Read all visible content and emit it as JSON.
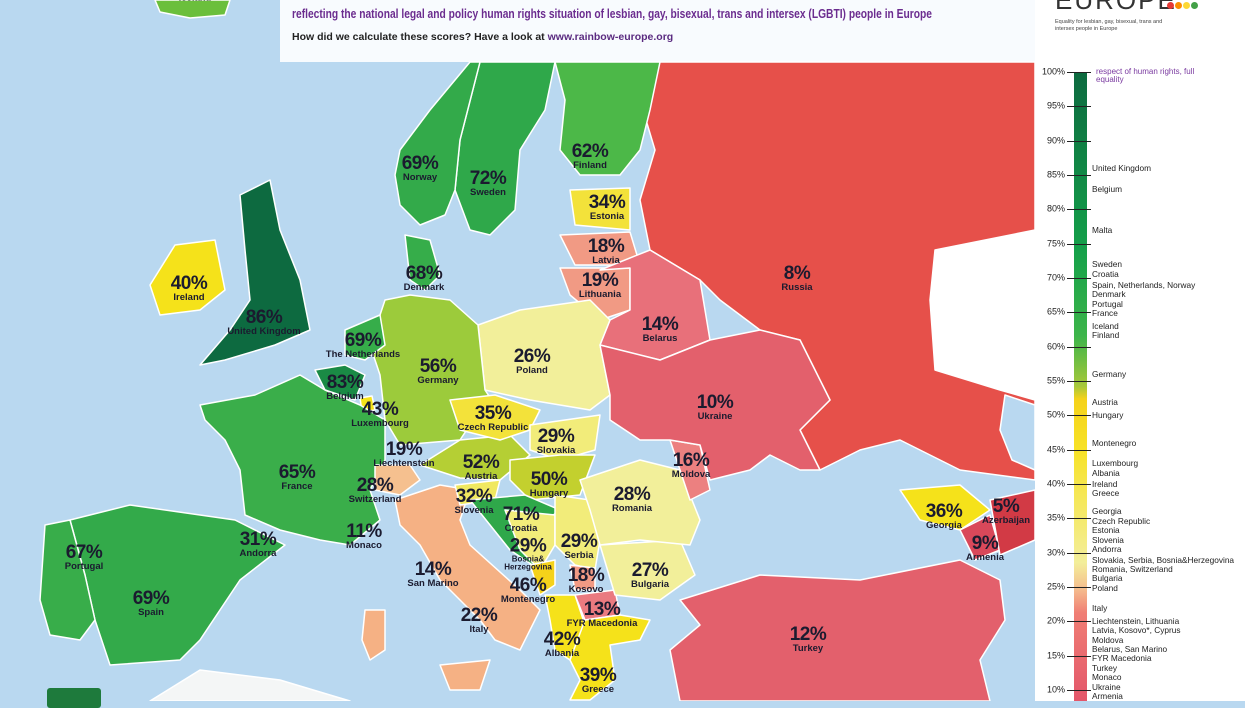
{
  "header": {
    "line1": "reflecting the national legal and policy human rights situation of lesbian, gay, bisexual, trans and intersex (LGBTI) people in Europe",
    "line2_prefix": "How did we calculate these scores? Have a look at ",
    "line2_link": "www.rainbow-europe.org"
  },
  "logo": {
    "word": "EUROPE",
    "subtitle": "Equality for lesbian, gay, bisexual, trans and intersex people in Europe"
  },
  "colors": {
    "sea": "#b9d8f0",
    "top": "#0d6a40",
    "green": "#2fb04a",
    "light_green": "#9ccb3b",
    "yellow": "#f5e21a",
    "pale_yellow": "#f2ef9a",
    "orange": "#f5b184",
    "salmon": "#f08a7a",
    "red": "#e6504a"
  },
  "countries": [
    {
      "name": "Iceland",
      "pct": ""
    },
    {
      "name": "Norway",
      "pct": "69%"
    },
    {
      "name": "Sweden",
      "pct": "72%"
    },
    {
      "name": "Finland",
      "pct": "62%"
    },
    {
      "name": "Estonia",
      "pct": "34%"
    },
    {
      "name": "Latvia",
      "pct": "18%"
    },
    {
      "name": "Lithuania",
      "pct": "19%"
    },
    {
      "name": "Belarus",
      "pct": "14%"
    },
    {
      "name": "Russia",
      "pct": "8%"
    },
    {
      "name": "Ukraine",
      "pct": "10%"
    },
    {
      "name": "Moldova",
      "pct": "16%"
    },
    {
      "name": "Ireland",
      "pct": "40%"
    },
    {
      "name": "United Kingdom",
      "pct": "86%"
    },
    {
      "name": "Denmark",
      "pct": "68%"
    },
    {
      "name": "The Netherlands",
      "pct": "69%"
    },
    {
      "name": "Germany",
      "pct": "56%"
    },
    {
      "name": "Poland",
      "pct": "26%"
    },
    {
      "name": "Belgium",
      "pct": "83%"
    },
    {
      "name": "Luxembourg",
      "pct": "43%"
    },
    {
      "name": "Czech Republic",
      "pct": "35%"
    },
    {
      "name": "Slovakia",
      "pct": "29%"
    },
    {
      "name": "Liechtenstein",
      "pct": "19%"
    },
    {
      "name": "Austria",
      "pct": "52%"
    },
    {
      "name": "Hungary",
      "pct": "50%"
    },
    {
      "name": "Switzerland",
      "pct": "28%"
    },
    {
      "name": "France",
      "pct": "65%"
    },
    {
      "name": "Slovenia",
      "pct": "32%"
    },
    {
      "name": "Croatia",
      "pct": "71%"
    },
    {
      "name": "Romania",
      "pct": "28%"
    },
    {
      "name": "Monaco",
      "pct": "11%"
    },
    {
      "name": "Andorra",
      "pct": "31%"
    },
    {
      "name": "Portugal",
      "pct": "67%"
    },
    {
      "name": "Bosnia& Herzegovina",
      "pct": "29%"
    },
    {
      "name": "Serbia",
      "pct": "29%"
    },
    {
      "name": "San Marino",
      "pct": "14%"
    },
    {
      "name": "Spain",
      "pct": "69%"
    },
    {
      "name": "Kosovo",
      "pct": "18%"
    },
    {
      "name": "Montenegro",
      "pct": "46%"
    },
    {
      "name": "Bulgaria",
      "pct": "27%"
    },
    {
      "name": "FYR Macedonia",
      "pct": "13%"
    },
    {
      "name": "Italy",
      "pct": "22%"
    },
    {
      "name": "Albania",
      "pct": "42%"
    },
    {
      "name": "Greece",
      "pct": "39%"
    },
    {
      "name": "Turkey",
      "pct": "12%"
    },
    {
      "name": "Georgia",
      "pct": "36%"
    },
    {
      "name": "Azerbaijan",
      "pct": "5%"
    },
    {
      "name": "Armenia",
      "pct": "9%"
    }
  ],
  "legend": {
    "note": "respect of human rights, full equality",
    "ticks": [
      "100%",
      "95%",
      "90%",
      "85%",
      "80%",
      "75%",
      "70%",
      "65%",
      "60%",
      "55%",
      "50%",
      "45%",
      "40%",
      "35%",
      "30%",
      "25%",
      "20%",
      "15%",
      "10%"
    ],
    "entries": [
      {
        "label": "United Kingdom",
        "score": 86
      },
      {
        "label": "Belgium",
        "score": 83
      },
      {
        "label": "Malta",
        "score": 77
      },
      {
        "label": "Sweden",
        "score": 72
      },
      {
        "label": "Croatia",
        "score": 71
      },
      {
        "label": "Spain, Netherlands, Norway",
        "score": 69
      },
      {
        "label": "Denmark",
        "score": 68
      },
      {
        "label": "Portugal",
        "score": 67
      },
      {
        "label": "France",
        "score": 65
      },
      {
        "label": "Iceland",
        "score": 63
      },
      {
        "label": "Finland",
        "score": 62
      },
      {
        "label": "Germany",
        "score": 56
      },
      {
        "label": "Austria",
        "score": 52
      },
      {
        "label": "Hungary",
        "score": 50
      },
      {
        "label": "Montenegro",
        "score": 46
      },
      {
        "label": "Luxembourg",
        "score": 43
      },
      {
        "label": "Albania",
        "score": 42
      },
      {
        "label": "Ireland",
        "score": 40
      },
      {
        "label": "Greece",
        "score": 39
      },
      {
        "label": "Georgia",
        "score": 36
      },
      {
        "label": "Czech Republic",
        "score": 35
      },
      {
        "label": "Estonia",
        "score": 34
      },
      {
        "label": "Slovenia",
        "score": 32
      },
      {
        "label": "Andorra",
        "score": 31
      },
      {
        "label": "Slovakia, Serbia, Bosnia&Herzegovina",
        "score": 29
      },
      {
        "label": "Romania, Switzerland",
        "score": 28
      },
      {
        "label": "Bulgaria",
        "score": 27
      },
      {
        "label": "Poland",
        "score": 26
      },
      {
        "label": "Italy",
        "score": 22
      },
      {
        "label": "Liechtenstein, Lithuania",
        "score": 19
      },
      {
        "label": "Latvia, Kosovo*, Cyprus",
        "score": 18
      },
      {
        "label": "Moldova",
        "score": 16
      },
      {
        "label": "Belarus, San Marino",
        "score": 14
      },
      {
        "label": "FYR Macedonia",
        "score": 13
      },
      {
        "label": "Turkey",
        "score": 12
      },
      {
        "label": "Monaco",
        "score": 11
      },
      {
        "label": "Ukraine",
        "score": 10
      },
      {
        "label": "Armenia",
        "score": 9
      }
    ]
  }
}
